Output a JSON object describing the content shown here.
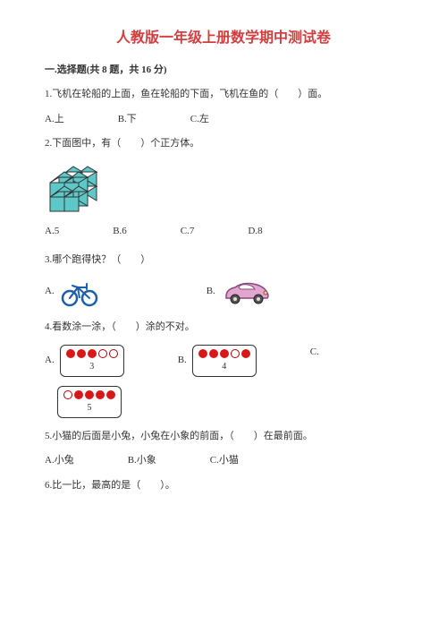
{
  "title": "人教版一年级上册数学期中测试卷",
  "section1": {
    "header": "一.选择题(共 8 题，共 16 分)"
  },
  "q1": {
    "text": "1.飞机在轮船的上面，鱼在轮船的下面，飞机在鱼的（　　）面。",
    "A": "A.上",
    "B": "B.下",
    "C": "C.左"
  },
  "q2": {
    "text": "2.下面图中，有（　　）个正方体。",
    "A": "A.5",
    "B": "B.6",
    "C": "C.7",
    "D": "D.8",
    "cube": {
      "fill": "#5ec8c8",
      "stroke": "#333333"
    }
  },
  "q3": {
    "text": "3.哪个跑得快？（　　）",
    "A": "A.",
    "B": "B.",
    "bike_color": "#1e5fa8",
    "car_body": "#e2a6d0",
    "car_outline": "#8a4a7a",
    "car_wheel": "#555555"
  },
  "q4": {
    "text": "4.看数涂一涂，（　　）涂的不对。",
    "A": "A.",
    "B": "B.",
    "C": "C.",
    "boxA": {
      "num": "3",
      "pattern": [
        1,
        1,
        1,
        0,
        0
      ]
    },
    "boxB": {
      "num": "4",
      "pattern": [
        1,
        1,
        1,
        0,
        1
      ]
    },
    "boxC": {
      "num": "5",
      "pattern": [
        0,
        1,
        1,
        1,
        1
      ]
    },
    "dot_fill": "#d81818",
    "dot_border": "#b00000"
  },
  "q5": {
    "text": "5.小猫的后面是小兔，小兔在小象的前面，（　　）在最前面。",
    "A": "A.小兔",
    "B": "B.小象",
    "C": "C.小猫"
  },
  "q6": {
    "text": "6.比一比，最高的是（　　）。"
  }
}
